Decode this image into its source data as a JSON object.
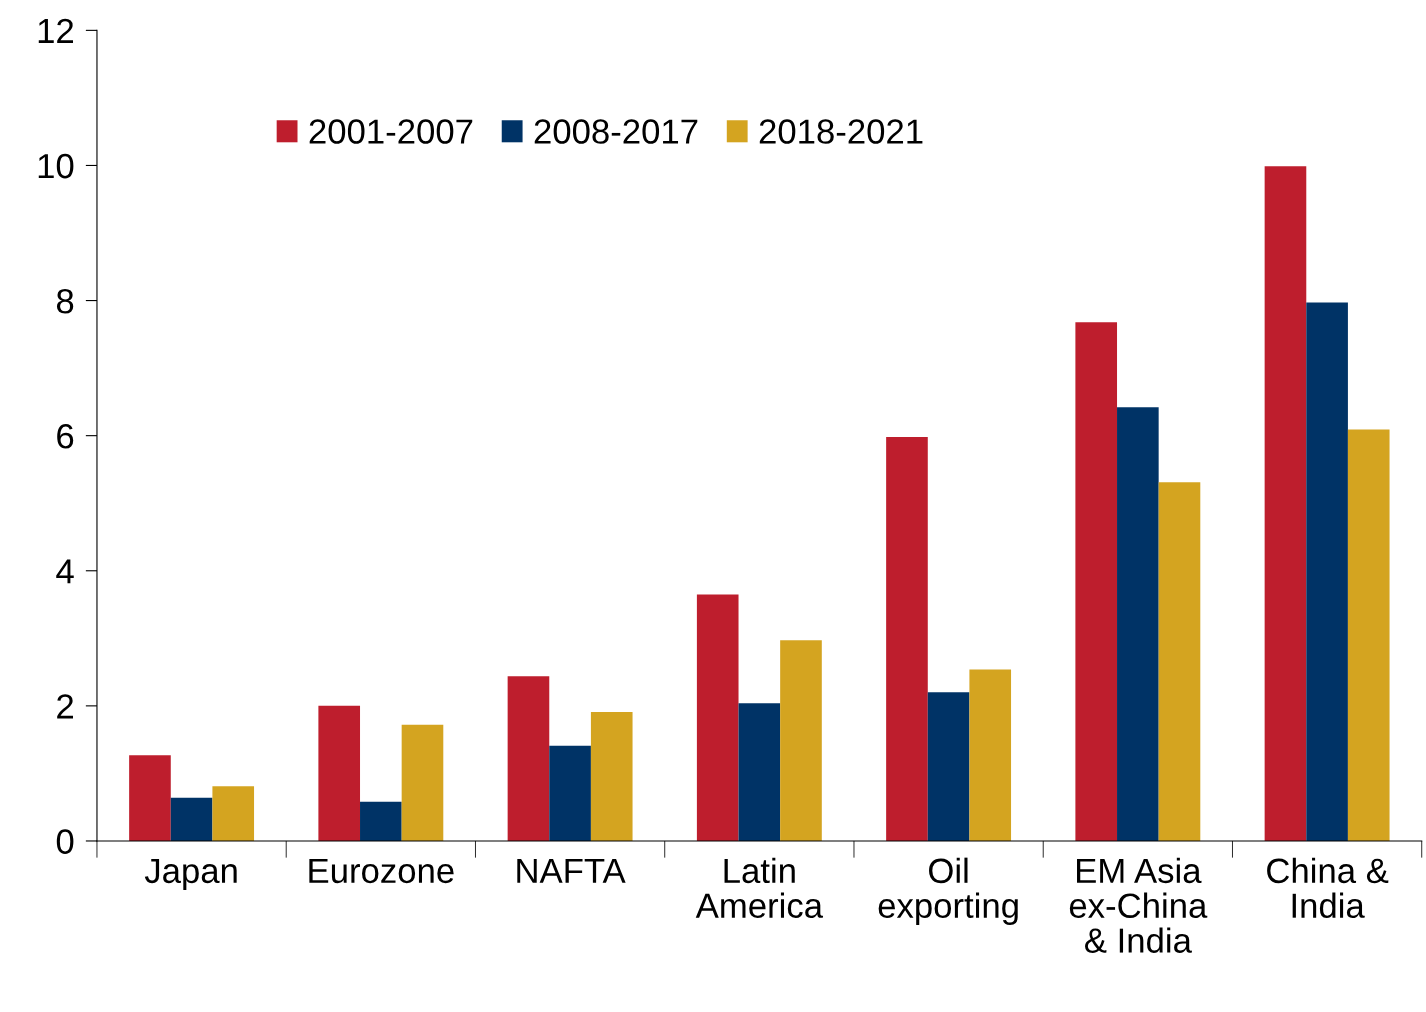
{
  "chart_data": {
    "type": "bar",
    "categories": [
      "Japan",
      "Eurozone",
      "NAFTA",
      "Latin\nAmerica",
      "Oil\nexporting",
      "EM Asia\nex-China\n& India",
      "China &\nIndia"
    ],
    "series": [
      {
        "name": "2001-2007",
        "color": "#be1e2d",
        "values": [
          1.27,
          2.0,
          2.44,
          3.65,
          5.98,
          7.68,
          9.99
        ]
      },
      {
        "name": "2008-2017",
        "color": "#003366",
        "values": [
          0.64,
          0.58,
          1.41,
          2.04,
          2.2,
          6.42,
          7.97
        ]
      },
      {
        "name": "2018-2021",
        "color": "#d4a420",
        "values": [
          0.81,
          1.72,
          1.91,
          2.97,
          2.54,
          5.31,
          6.09
        ]
      }
    ],
    "ylim": [
      0,
      12
    ],
    "yticks": [
      0,
      2,
      4,
      6,
      8,
      10,
      12
    ],
    "grid": false,
    "legend": "top"
  }
}
